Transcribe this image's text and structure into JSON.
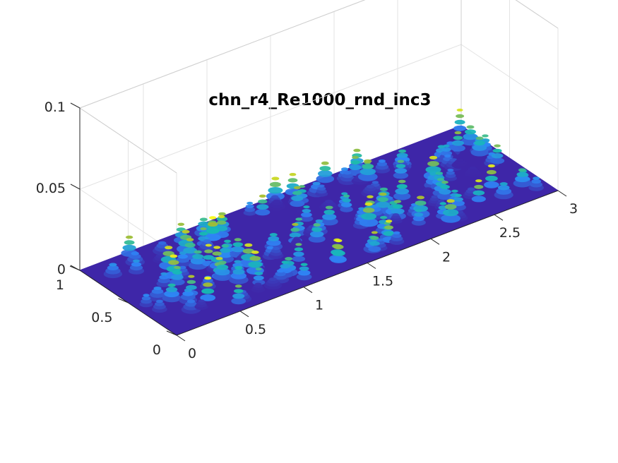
{
  "chart_data": {
    "type": "surface",
    "title": "chn_r4_Re1000_rnd_inc3",
    "xlabel": "",
    "ylabel": "",
    "zlabel": "",
    "xlim": [
      0,
      3
    ],
    "ylim": [
      0,
      1
    ],
    "zlim": [
      0,
      0.1
    ],
    "x_ticks": [
      "0",
      "0.5",
      "1",
      "1.5",
      "2",
      "2.5",
      "3"
    ],
    "y_ticks": [
      "0",
      "0.5",
      "1"
    ],
    "z_ticks": [
      "0",
      "0.05",
      "0.1"
    ],
    "grid": true,
    "colormap": "parula",
    "colors": {
      "low": "#3e26a8",
      "mid_low": "#2e87f7",
      "mid": "#16bcb2",
      "mid_high": "#a5be30",
      "high": "#f9fb15"
    }
  }
}
